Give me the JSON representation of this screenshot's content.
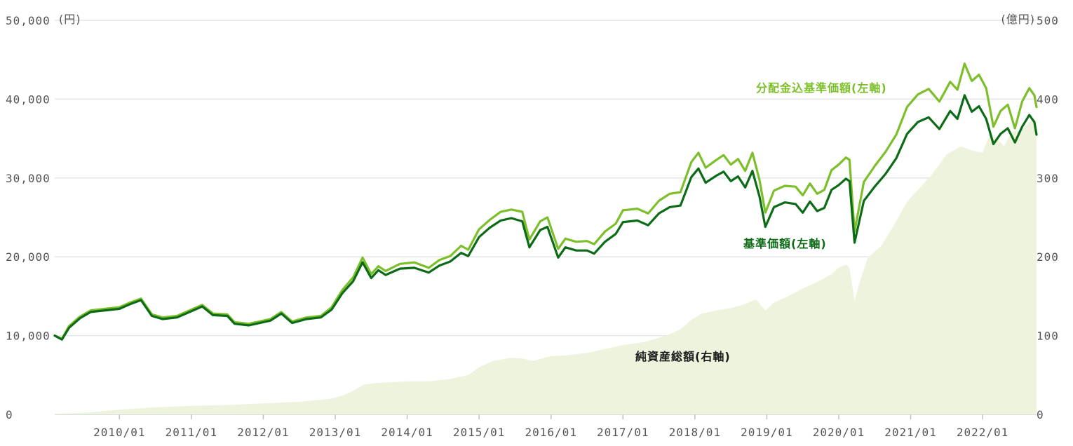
{
  "chart_data": {
    "type": "line",
    "left_axis_unit": "(円)",
    "right_axis_unit": "(億円)",
    "left_axis": {
      "ylim": [
        0,
        50000
      ],
      "ticks": [
        0,
        10000,
        20000,
        30000,
        40000,
        50000
      ],
      "tick_labels": [
        "0",
        "10,000",
        "20,000",
        "30,000",
        "40,000",
        "50,000"
      ]
    },
    "right_axis": {
      "ylim": [
        0,
        500
      ],
      "ticks": [
        0,
        100,
        200,
        300,
        400,
        500
      ],
      "tick_labels": [
        "0",
        "100",
        "200",
        "300",
        "400",
        "500"
      ]
    },
    "x_range": [
      2009.1,
      2022.75
    ],
    "x_ticks": [
      {
        "x": 2010,
        "label": "2010/01"
      },
      {
        "x": 2011,
        "label": "2011/01"
      },
      {
        "x": 2012,
        "label": "2012/01"
      },
      {
        "x": 2013,
        "label": "2013/01"
      },
      {
        "x": 2014,
        "label": "2014/01"
      },
      {
        "x": 2015,
        "label": "2015/01"
      },
      {
        "x": 2016,
        "label": "2016/01"
      },
      {
        "x": 2017,
        "label": "2017/01"
      },
      {
        "x": 2018,
        "label": "2018/01"
      },
      {
        "x": 2019,
        "label": "2019/01"
      },
      {
        "x": 2020,
        "label": "2020/01"
      },
      {
        "x": 2021,
        "label": "2021/01"
      },
      {
        "x": 2022,
        "label": "2022/01"
      }
    ],
    "grid": true,
    "series": [
      {
        "name": "分配金込基準価額(左軸)",
        "axis": "left",
        "kind": "line",
        "color": "#7dbf2a",
        "points": [
          [
            2009.1,
            10000
          ],
          [
            2009.2,
            9600
          ],
          [
            2009.3,
            11200
          ],
          [
            2009.45,
            12400
          ],
          [
            2009.6,
            13200
          ],
          [
            2009.8,
            13400
          ],
          [
            2010.0,
            13600
          ],
          [
            2010.15,
            14200
          ],
          [
            2010.3,
            14700
          ],
          [
            2010.45,
            12700
          ],
          [
            2010.6,
            12300
          ],
          [
            2010.8,
            12500
          ],
          [
            2011.0,
            13300
          ],
          [
            2011.15,
            13900
          ],
          [
            2011.3,
            12800
          ],
          [
            2011.5,
            12700
          ],
          [
            2011.6,
            11700
          ],
          [
            2011.8,
            11500
          ],
          [
            2011.9,
            11700
          ],
          [
            2012.1,
            12100
          ],
          [
            2012.25,
            13000
          ],
          [
            2012.4,
            11800
          ],
          [
            2012.6,
            12300
          ],
          [
            2012.8,
            12500
          ],
          [
            2012.95,
            13600
          ],
          [
            2013.1,
            15800
          ],
          [
            2013.25,
            17400
          ],
          [
            2013.38,
            19900
          ],
          [
            2013.5,
            17800
          ],
          [
            2013.6,
            18800
          ],
          [
            2013.7,
            18200
          ],
          [
            2013.9,
            19100
          ],
          [
            2014.1,
            19300
          ],
          [
            2014.3,
            18600
          ],
          [
            2014.45,
            19600
          ],
          [
            2014.6,
            20100
          ],
          [
            2014.75,
            21400
          ],
          [
            2014.85,
            20900
          ],
          [
            2015.0,
            23500
          ],
          [
            2015.15,
            24700
          ],
          [
            2015.3,
            25700
          ],
          [
            2015.45,
            26000
          ],
          [
            2015.6,
            25700
          ],
          [
            2015.7,
            22200
          ],
          [
            2015.85,
            24500
          ],
          [
            2015.95,
            25000
          ],
          [
            2016.1,
            21000
          ],
          [
            2016.2,
            22300
          ],
          [
            2016.35,
            21900
          ],
          [
            2016.5,
            22000
          ],
          [
            2016.6,
            21600
          ],
          [
            2016.75,
            23200
          ],
          [
            2016.9,
            24200
          ],
          [
            2017.0,
            25900
          ],
          [
            2017.2,
            26100
          ],
          [
            2017.35,
            25500
          ],
          [
            2017.5,
            27100
          ],
          [
            2017.65,
            28000
          ],
          [
            2017.8,
            28200
          ],
          [
            2017.95,
            32000
          ],
          [
            2018.05,
            33200
          ],
          [
            2018.15,
            31300
          ],
          [
            2018.3,
            32300
          ],
          [
            2018.4,
            32900
          ],
          [
            2018.5,
            31700
          ],
          [
            2018.6,
            32400
          ],
          [
            2018.7,
            30900
          ],
          [
            2018.8,
            33200
          ],
          [
            2018.9,
            29700
          ],
          [
            2018.98,
            25600
          ],
          [
            2019.1,
            28400
          ],
          [
            2019.25,
            29000
          ],
          [
            2019.4,
            28900
          ],
          [
            2019.5,
            27800
          ],
          [
            2019.6,
            29300
          ],
          [
            2019.7,
            28000
          ],
          [
            2019.8,
            28500
          ],
          [
            2019.9,
            31000
          ],
          [
            2020.0,
            31700
          ],
          [
            2020.1,
            32600
          ],
          [
            2020.15,
            32300
          ],
          [
            2020.22,
            23200
          ],
          [
            2020.35,
            29500
          ],
          [
            2020.5,
            31500
          ],
          [
            2020.65,
            33300
          ],
          [
            2020.8,
            35500
          ],
          [
            2020.95,
            39000
          ],
          [
            2021.1,
            40600
          ],
          [
            2021.25,
            41300
          ],
          [
            2021.4,
            39700
          ],
          [
            2021.55,
            42200
          ],
          [
            2021.65,
            41200
          ],
          [
            2021.75,
            44500
          ],
          [
            2021.85,
            42300
          ],
          [
            2021.95,
            43100
          ],
          [
            2022.05,
            41400
          ],
          [
            2022.15,
            36500
          ],
          [
            2022.25,
            38500
          ],
          [
            2022.35,
            39300
          ],
          [
            2022.45,
            36300
          ],
          [
            2022.55,
            39700
          ],
          [
            2022.65,
            41400
          ],
          [
            2022.72,
            40500
          ],
          [
            2022.75,
            39000
          ]
        ]
      },
      {
        "name": "基準価額(左軸)",
        "axis": "left",
        "kind": "line",
        "color": "#0c6b16",
        "points": [
          [
            2009.1,
            10000
          ],
          [
            2009.2,
            9500
          ],
          [
            2009.3,
            11000
          ],
          [
            2009.45,
            12200
          ],
          [
            2009.6,
            13000
          ],
          [
            2009.8,
            13200
          ],
          [
            2010.0,
            13400
          ],
          [
            2010.15,
            14000
          ],
          [
            2010.3,
            14500
          ],
          [
            2010.45,
            12500
          ],
          [
            2010.6,
            12100
          ],
          [
            2010.8,
            12300
          ],
          [
            2011.0,
            13100
          ],
          [
            2011.15,
            13700
          ],
          [
            2011.3,
            12600
          ],
          [
            2011.5,
            12500
          ],
          [
            2011.6,
            11500
          ],
          [
            2011.8,
            11300
          ],
          [
            2011.9,
            11500
          ],
          [
            2012.1,
            11900
          ],
          [
            2012.25,
            12800
          ],
          [
            2012.4,
            11600
          ],
          [
            2012.6,
            12100
          ],
          [
            2012.8,
            12300
          ],
          [
            2012.95,
            13300
          ],
          [
            2013.1,
            15400
          ],
          [
            2013.25,
            16900
          ],
          [
            2013.38,
            19300
          ],
          [
            2013.5,
            17300
          ],
          [
            2013.6,
            18300
          ],
          [
            2013.7,
            17700
          ],
          [
            2013.9,
            18500
          ],
          [
            2014.1,
            18600
          ],
          [
            2014.3,
            18000
          ],
          [
            2014.45,
            18900
          ],
          [
            2014.6,
            19400
          ],
          [
            2014.75,
            20500
          ],
          [
            2014.85,
            20100
          ],
          [
            2015.0,
            22500
          ],
          [
            2015.15,
            23700
          ],
          [
            2015.3,
            24600
          ],
          [
            2015.45,
            24900
          ],
          [
            2015.6,
            24500
          ],
          [
            2015.7,
            21200
          ],
          [
            2015.85,
            23400
          ],
          [
            2015.95,
            23800
          ],
          [
            2016.1,
            19900
          ],
          [
            2016.2,
            21200
          ],
          [
            2016.35,
            20800
          ],
          [
            2016.5,
            20800
          ],
          [
            2016.6,
            20400
          ],
          [
            2016.75,
            21900
          ],
          [
            2016.9,
            22900
          ],
          [
            2017.0,
            24400
          ],
          [
            2017.2,
            24600
          ],
          [
            2017.35,
            24000
          ],
          [
            2017.5,
            25500
          ],
          [
            2017.65,
            26300
          ],
          [
            2017.8,
            26500
          ],
          [
            2017.95,
            30100
          ],
          [
            2018.05,
            31200
          ],
          [
            2018.15,
            29400
          ],
          [
            2018.3,
            30300
          ],
          [
            2018.4,
            30800
          ],
          [
            2018.5,
            29600
          ],
          [
            2018.6,
            30200
          ],
          [
            2018.7,
            28800
          ],
          [
            2018.8,
            30900
          ],
          [
            2018.9,
            27600
          ],
          [
            2018.98,
            23800
          ],
          [
            2019.1,
            26300
          ],
          [
            2019.25,
            26900
          ],
          [
            2019.4,
            26700
          ],
          [
            2019.5,
            25600
          ],
          [
            2019.6,
            27000
          ],
          [
            2019.7,
            25800
          ],
          [
            2019.8,
            26200
          ],
          [
            2019.9,
            28500
          ],
          [
            2020.0,
            29100
          ],
          [
            2020.1,
            29900
          ],
          [
            2020.15,
            29600
          ],
          [
            2020.22,
            21800
          ],
          [
            2020.35,
            27100
          ],
          [
            2020.5,
            28900
          ],
          [
            2020.65,
            30500
          ],
          [
            2020.8,
            32500
          ],
          [
            2020.95,
            35600
          ],
          [
            2021.1,
            37100
          ],
          [
            2021.25,
            37700
          ],
          [
            2021.4,
            36200
          ],
          [
            2021.55,
            38500
          ],
          [
            2021.65,
            37500
          ],
          [
            2021.75,
            40500
          ],
          [
            2021.85,
            38400
          ],
          [
            2021.95,
            39100
          ],
          [
            2022.05,
            37500
          ],
          [
            2022.15,
            34300
          ],
          [
            2022.25,
            35600
          ],
          [
            2022.35,
            36300
          ],
          [
            2022.45,
            34500
          ],
          [
            2022.55,
            36500
          ],
          [
            2022.65,
            38000
          ],
          [
            2022.72,
            37100
          ],
          [
            2022.75,
            35500
          ]
        ]
      },
      {
        "name": "純資産総額(右軸)",
        "axis": "right",
        "kind": "area",
        "color": "#eef3dd",
        "points": [
          [
            2009.1,
            1
          ],
          [
            2009.5,
            2
          ],
          [
            2010.0,
            6
          ],
          [
            2010.5,
            9
          ],
          [
            2011.0,
            11
          ],
          [
            2011.5,
            12
          ],
          [
            2012.0,
            14
          ],
          [
            2012.5,
            16
          ],
          [
            2012.95,
            20
          ],
          [
            2013.1,
            24
          ],
          [
            2013.25,
            30
          ],
          [
            2013.4,
            38
          ],
          [
            2013.6,
            40
          ],
          [
            2013.8,
            41
          ],
          [
            2014.0,
            42
          ],
          [
            2014.3,
            42
          ],
          [
            2014.6,
            45
          ],
          [
            2014.85,
            50
          ],
          [
            2015.0,
            60
          ],
          [
            2015.2,
            68
          ],
          [
            2015.45,
            72
          ],
          [
            2015.6,
            71
          ],
          [
            2015.75,
            68
          ],
          [
            2016.0,
            74
          ],
          [
            2016.2,
            75
          ],
          [
            2016.5,
            78
          ],
          [
            2016.8,
            84
          ],
          [
            2017.0,
            88
          ],
          [
            2017.3,
            92
          ],
          [
            2017.6,
            100
          ],
          [
            2017.8,
            108
          ],
          [
            2017.95,
            120
          ],
          [
            2018.1,
            128
          ],
          [
            2018.3,
            132
          ],
          [
            2018.5,
            135
          ],
          [
            2018.7,
            140
          ],
          [
            2018.85,
            146
          ],
          [
            2018.98,
            132
          ],
          [
            2019.1,
            142
          ],
          [
            2019.3,
            150
          ],
          [
            2019.5,
            160
          ],
          [
            2019.7,
            168
          ],
          [
            2019.9,
            178
          ],
          [
            2020.0,
            186
          ],
          [
            2020.1,
            190
          ],
          [
            2020.15,
            186
          ],
          [
            2020.22,
            145
          ],
          [
            2020.3,
            170
          ],
          [
            2020.4,
            198
          ],
          [
            2020.6,
            215
          ],
          [
            2020.8,
            245
          ],
          [
            2020.95,
            270
          ],
          [
            2021.1,
            285
          ],
          [
            2021.3,
            305
          ],
          [
            2021.5,
            330
          ],
          [
            2021.7,
            340
          ],
          [
            2021.85,
            335
          ],
          [
            2022.0,
            332
          ],
          [
            2022.1,
            355
          ],
          [
            2022.2,
            350
          ],
          [
            2022.3,
            340
          ],
          [
            2022.4,
            358
          ],
          [
            2022.55,
            362
          ],
          [
            2022.7,
            375
          ],
          [
            2022.75,
            372
          ]
        ]
      }
    ]
  }
}
